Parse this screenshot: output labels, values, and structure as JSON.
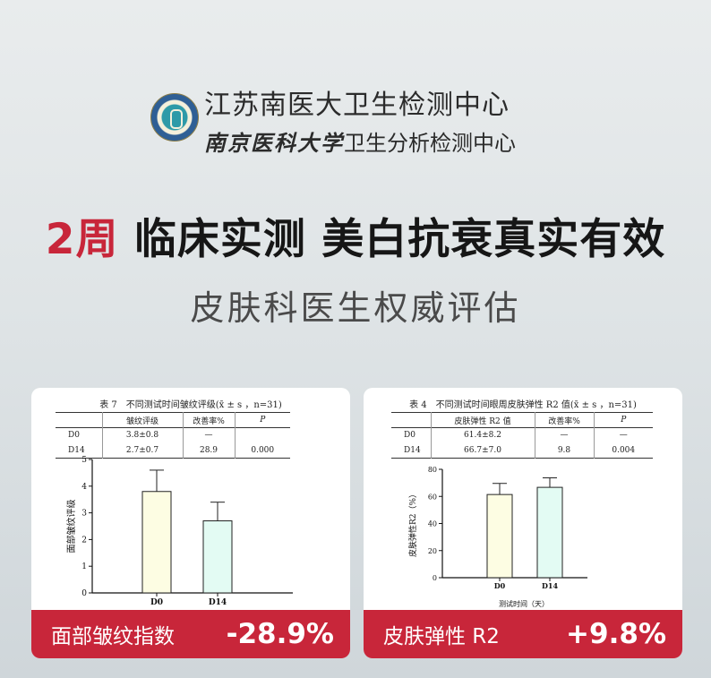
{
  "header": {
    "org_line1": "江苏南医大卫生检测中心",
    "org_line2_bold": "南京医科大学",
    "org_line2_rest": "卫生分析检测中心"
  },
  "headline": {
    "red": "2周",
    "rest": " 临床实测 美白抗衰真实有效"
  },
  "subtitle": "皮肤科医生权威评估",
  "colors": {
    "accent": "#c8263a",
    "bar_d0": "#fdfde3",
    "bar_d14": "#e3fbf3"
  },
  "cards": [
    {
      "table_title": "表 7　不同测试时间皱纹评级(x̄ ± s ，n=31)",
      "columns": [
        "",
        "皱纹评级",
        "改善率%",
        "P"
      ],
      "rows": [
        [
          "D0",
          "3.8±0.8",
          "—",
          ""
        ],
        [
          "D14",
          "2.7±0.7",
          "28.9",
          "0.000"
        ]
      ],
      "metric": "面部皱纹指数",
      "change": "-28.9%"
    },
    {
      "table_title": "表 4　不同测试时间眼周皮肤弹性 R2 值(x̄ ± s ，n=31)",
      "columns": [
        "",
        "皮肤弹性 R2 值",
        "改善率%",
        "P"
      ],
      "rows": [
        [
          "D0",
          "61.4±8.2",
          "—",
          "—"
        ],
        [
          "D14",
          "66.7±7.0",
          "9.8",
          "0.004"
        ]
      ],
      "metric": "皮肤弹性 R2",
      "change": "+9.8%"
    }
  ],
  "chart_data": [
    {
      "type": "bar",
      "categories": [
        "D0",
        "D14"
      ],
      "values": [
        3.8,
        2.7
      ],
      "errors": [
        0.8,
        0.7
      ],
      "ylabel": "面部皱纹评级",
      "xlabel": "",
      "ylim": [
        0,
        5
      ],
      "yticks": [
        0,
        1,
        2,
        3,
        4,
        5
      ],
      "grid": false
    },
    {
      "type": "bar",
      "categories": [
        "D0",
        "D14"
      ],
      "values": [
        61.4,
        66.7
      ],
      "errors": [
        8.2,
        7.0
      ],
      "ylabel": "皮肤弹性R2（%）",
      "xlabel": "测试时间（天）",
      "ylim": [
        0,
        80
      ],
      "yticks": [
        0,
        20,
        40,
        60,
        80
      ],
      "grid": false
    }
  ]
}
